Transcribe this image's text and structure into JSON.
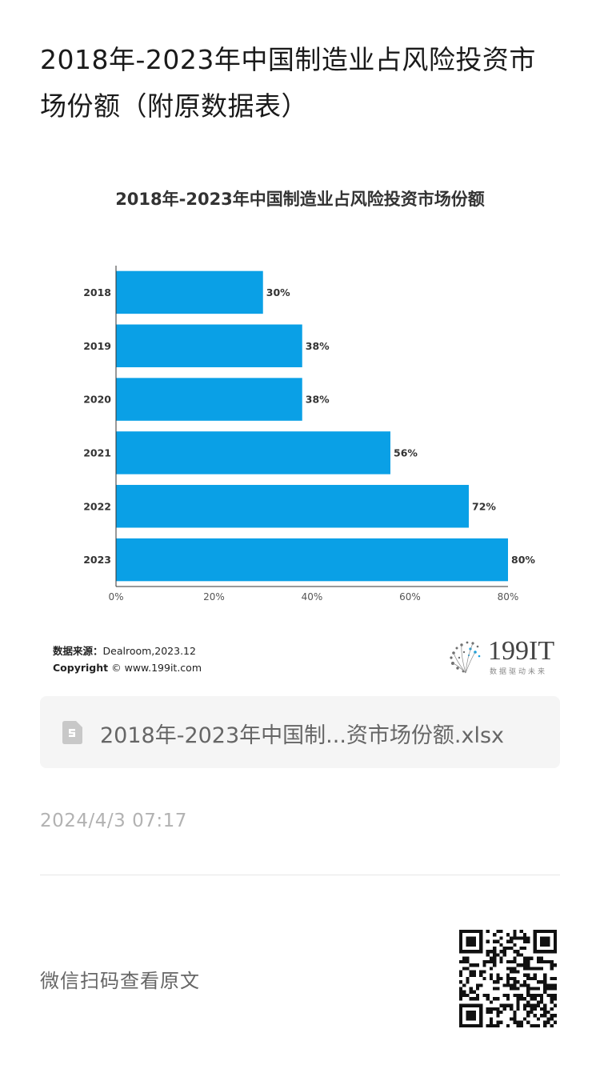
{
  "article": {
    "title": "2018年-2023年中国制造业占风险投资市场份额（附原数据表）"
  },
  "chart_data": {
    "type": "bar",
    "orientation": "horizontal",
    "title": "2018年-2023年中国制造业占风险投资市场份额",
    "categories": [
      "2018",
      "2019",
      "2020",
      "2021",
      "2022",
      "2023"
    ],
    "values": [
      30,
      38,
      38,
      56,
      72,
      80
    ],
    "value_labels": [
      "30%",
      "38%",
      "38%",
      "56%",
      "72%",
      "80%"
    ],
    "xticks": [
      "0%",
      "20%",
      "40%",
      "60%",
      "80%"
    ],
    "xtick_values": [
      0,
      20,
      40,
      60,
      80
    ],
    "xlim": [
      0,
      80
    ],
    "bar_color": "#0aa0e6",
    "grid": false
  },
  "source": {
    "label": "数据来源：",
    "text": "Dealroom,2023.12",
    "copyright_label": "Copyright",
    "copyright_text": "© www.199it.com"
  },
  "brand": {
    "name": "199IT",
    "slogan": "数据驱动未来"
  },
  "attachment": {
    "file_name": "2018年-2023年中国制...资市场份额.xlsx",
    "icon": "spreadsheet-file-icon"
  },
  "meta": {
    "timestamp": "2024/4/3 07:17",
    "scan_prompt": "微信扫码查看原文"
  },
  "colors": {
    "accent": "#0aa0e6",
    "file_card_bg": "#f5f5f5",
    "muted_text": "#b2b2b2"
  }
}
